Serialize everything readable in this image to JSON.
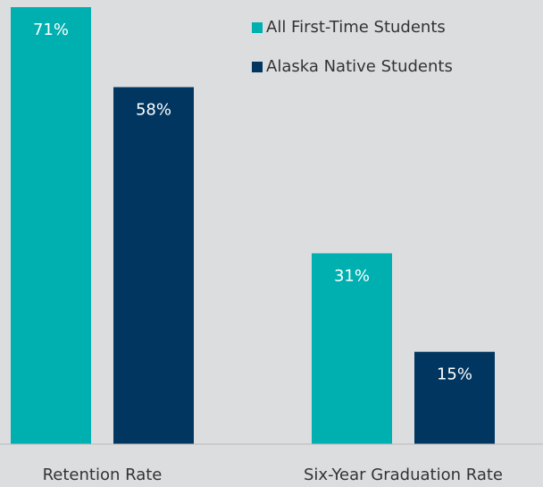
{
  "chart_data": {
    "type": "bar",
    "categories": [
      "Retention Rate",
      "Six-Year Graduation Rate"
    ],
    "series": [
      {
        "name": "All First-Time Students",
        "color": "#00b0b0",
        "values": [
          71,
          31
        ],
        "value_labels": [
          "71%",
          "31%"
        ]
      },
      {
        "name": "Alaska Native Students",
        "color": "#003660",
        "values": [
          58,
          15
        ],
        "value_labels": [
          "58%",
          "15%"
        ]
      }
    ],
    "legend": "top-right"
  }
}
